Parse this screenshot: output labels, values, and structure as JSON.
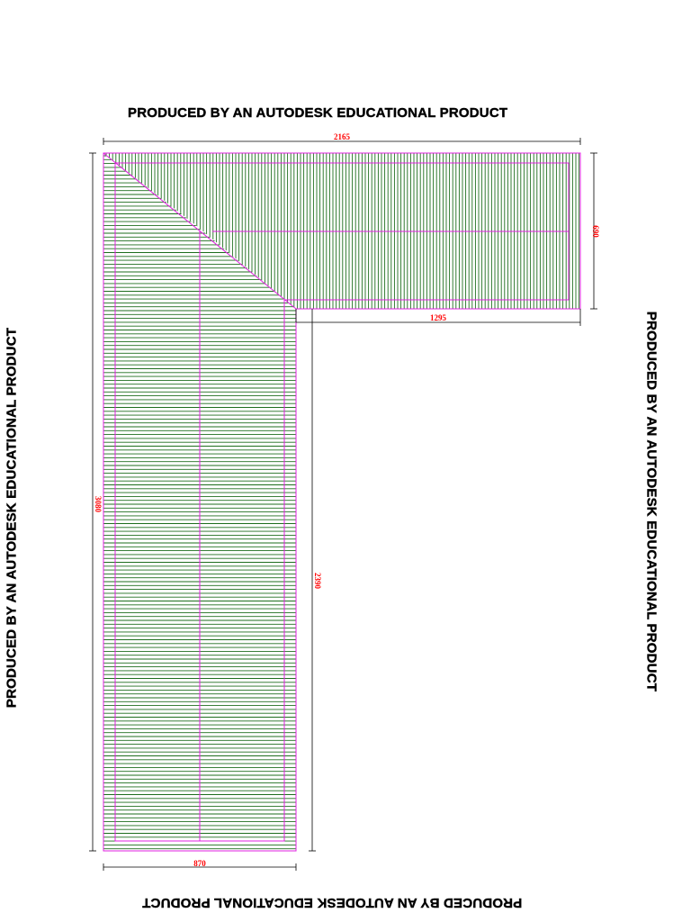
{
  "watermarks": {
    "top": "PRODUCED BY AN AUTODESK EDUCATIONAL PRODUCT",
    "bottom": "PRODUCED BY AN AUTODESK EDUCATIONAL PRODUCT",
    "left": "PRODUCED BY AN AUTODESK EDUCATIONAL PRODUCT",
    "right": "PRODUCED BY AN AUTODESK EDUCATIONAL PRODUCT"
  },
  "dimensions": {
    "overall_width": "2165",
    "top_depth": "690",
    "inner_run": "1295",
    "overall_height": "3080",
    "inner_height": "2390",
    "bottom_width": "870"
  },
  "colors": {
    "hatch": "#1e6e1e",
    "outline": "#e020e0",
    "dimension_line": "#000000",
    "dimension_text": "#ff0000"
  }
}
